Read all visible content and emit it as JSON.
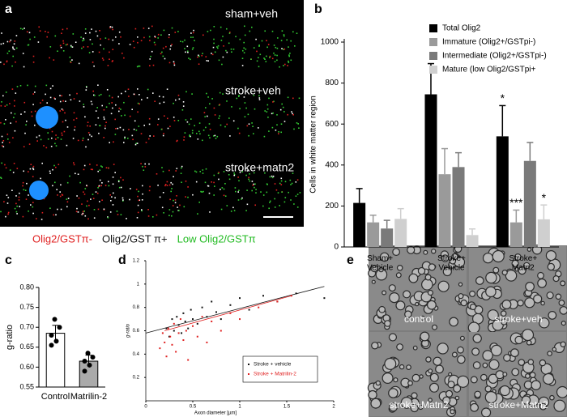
{
  "panels": {
    "a": {
      "panel_label": "a",
      "image_labels": [
        "sham+veh",
        "stroke+veh",
        "stroke+matn2"
      ],
      "caption": [
        {
          "text": "Olig2/GSTπ-",
          "color": "#e02020"
        },
        {
          "text": "Olig2/GST π+",
          "color": "#111111"
        },
        {
          "text": "Low Olig2/GSTπ",
          "color": "#22bb22"
        }
      ]
    },
    "e": {
      "panel_label": "e",
      "image_labels": [
        "control",
        "stroke+veh",
        "stroke+Matn2",
        "stroke+Matn2"
      ]
    }
  },
  "chart_data": [
    {
      "type": "bar",
      "panel_label": "b",
      "y_label": "Cells in white matter region",
      "categories": [
        "Sham+\nVehicle",
        "Stroke+\nVehicle",
        "Stroke+\nMatn2"
      ],
      "ylim": [
        0,
        1000
      ],
      "yticks": [
        0,
        200,
        400,
        600,
        800,
        1000
      ],
      "series": [
        {
          "name": "Total Olig2",
          "color": "#000000",
          "values": [
            215,
            745,
            540
          ],
          "errors": [
            70,
            150,
            150
          ],
          "significance": [
            null,
            null,
            "*"
          ]
        },
        {
          "name": "Immature (Olig2+/GSTpi-)",
          "color": "#9a9a9a",
          "values": [
            120,
            355,
            120
          ],
          "errors": [
            35,
            125,
            60
          ],
          "significance": [
            null,
            null,
            "***"
          ]
        },
        {
          "name": "Intermediate (Olig2+/GSTpi-)",
          "color": "#7a7a7a",
          "values": [
            90,
            390,
            420
          ],
          "errors": [
            40,
            70,
            90
          ],
          "significance": [
            null,
            null,
            null
          ]
        },
        {
          "name": "Mature (low Olig2/GSTpi+",
          "color": "#cfcfcf",
          "values": [
            137,
            58,
            135
          ],
          "errors": [
            50,
            30,
            70
          ],
          "significance": [
            null,
            null,
            "*"
          ]
        }
      ]
    },
    {
      "type": "dotbar",
      "panel_label": "c",
      "y_label": "g-ratio",
      "categories": [
        "Control",
        "Matrilin-2"
      ],
      "values": [
        0.685,
        0.615
      ],
      "errors": [
        0.02,
        0.015
      ],
      "colors": [
        "#ffffff",
        "#aaaaaa"
      ],
      "points": [
        [
          0.72,
          0.7,
          0.68,
          0.665,
          0.655
        ],
        [
          0.635,
          0.625,
          0.615,
          0.605,
          0.59
        ]
      ],
      "ylim": [
        0.55,
        0.8
      ],
      "yticks": [
        {
          "value": 0.55,
          "label": "0.55"
        },
        {
          "value": 0.6,
          "label": "0.60"
        },
        {
          "value": 0.65,
          "label": "0.65"
        },
        {
          "value": 0.7,
          "label": "0.70"
        },
        {
          "value": 0.75,
          "label": "0.75"
        },
        {
          "value": 0.8,
          "label": "0.80"
        }
      ]
    },
    {
      "type": "scatter",
      "panel_label": "d",
      "x_label": "Axon diameter [µm]",
      "y_label": "g-ratio",
      "xlim": [
        0,
        2
      ],
      "xticks": [
        0,
        0.5,
        1,
        1.5,
        2
      ],
      "ylim": [
        0,
        1.2
      ],
      "yticks": [
        0.2,
        0.4,
        0.6,
        0.8,
        1,
        1.2
      ],
      "series": [
        {
          "name": "Stroke + vehicle",
          "color": "#111111",
          "x": [
            0.22,
            0.25,
            0.28,
            0.3,
            0.33,
            0.35,
            0.38,
            0.4,
            0.42,
            0.45,
            0.48,
            0.5,
            0.55,
            0.6,
            0.65,
            0.7,
            0.75,
            0.8,
            0.9,
            1.0,
            1.1,
            1.25,
            1.4,
            1.6,
            1.9
          ],
          "y": [
            0.62,
            0.55,
            0.7,
            0.6,
            0.72,
            0.65,
            0.58,
            0.75,
            0.68,
            0.62,
            0.78,
            0.7,
            0.66,
            0.8,
            0.72,
            0.85,
            0.76,
            0.7,
            0.82,
            0.88,
            0.78,
            0.9,
            0.85,
            0.92,
            0.88
          ],
          "trend": {
            "x": [
              0,
              1.9
            ],
            "y": [
              0.58,
              0.98
            ]
          }
        },
        {
          "name": "Stroke + Matrilin-2",
          "color": "#e02020",
          "x": [
            0.15,
            0.18,
            0.2,
            0.22,
            0.24,
            0.26,
            0.28,
            0.3,
            0.32,
            0.35,
            0.37,
            0.4,
            0.43,
            0.45,
            0.5,
            0.55,
            0.6,
            0.65,
            0.7,
            0.8,
            0.9,
            1.0,
            1.2,
            1.4,
            1.55
          ],
          "y": [
            0.45,
            0.58,
            0.5,
            0.38,
            0.62,
            0.55,
            0.48,
            0.66,
            0.42,
            0.58,
            0.7,
            0.52,
            0.6,
            0.35,
            0.64,
            0.55,
            0.72,
            0.5,
            0.68,
            0.6,
            0.75,
            0.7,
            0.8,
            0.85,
            0.9
          ],
          "trend": {
            "x": [
              0.2,
              1.55
            ],
            "y": [
              0.6,
              0.9
            ]
          }
        }
      ]
    }
  ]
}
